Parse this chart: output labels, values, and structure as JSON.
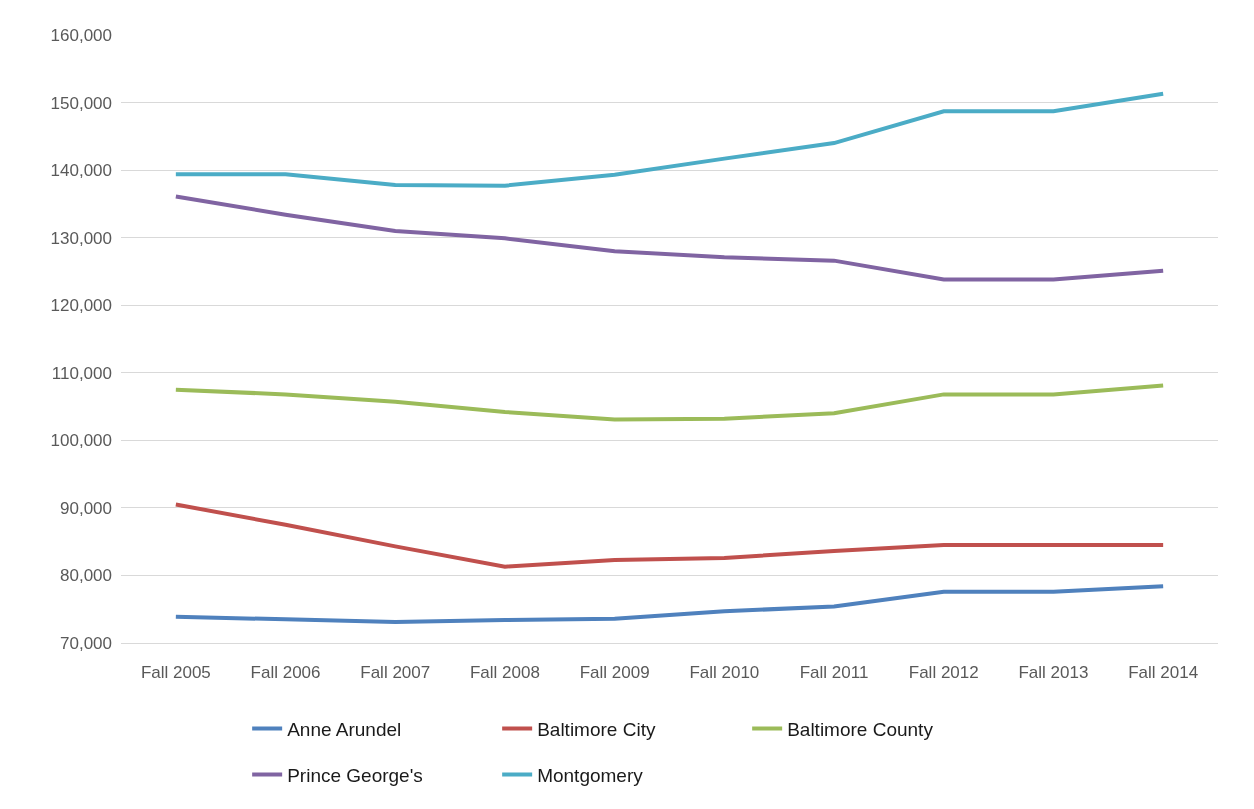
{
  "chart_data": {
    "type": "line",
    "categories": [
      "Fall 2005",
      "Fall 2006",
      "Fall 2007",
      "Fall 2008",
      "Fall 2009",
      "Fall 2010",
      "Fall 2011",
      "Fall 2012",
      "Fall 2013",
      "Fall 2014"
    ],
    "series": [
      {
        "name": "Anne Arundel",
        "color": "#4f81bd",
        "values": [
          73900,
          73500,
          73100,
          73400,
          73600,
          74700,
          75400,
          77600,
          77600,
          78400
        ]
      },
      {
        "name": "Baltimore City",
        "color": "#c0504d",
        "values": [
          90500,
          87500,
          84300,
          81300,
          82300,
          82600,
          83600,
          84500,
          84500,
          84500
        ]
      },
      {
        "name": "Baltimore County",
        "color": "#9bbb59",
        "values": [
          107500,
          106800,
          105700,
          104200,
          103100,
          103200,
          104000,
          106800,
          106800,
          108100
        ]
      },
      {
        "name": "Prince George's",
        "color": "#8064a2",
        "values": [
          136100,
          133400,
          131000,
          129900,
          128000,
          127100,
          126600,
          123800,
          123800,
          125100
        ]
      },
      {
        "name": "Montgomery",
        "color": "#4bacc6",
        "values": [
          139400,
          139400,
          137800,
          137700,
          139300,
          141700,
          144000,
          148700,
          148700,
          151300
        ]
      }
    ],
    "ylim": [
      70000,
      160000
    ],
    "yticks": [
      {
        "value": 70000,
        "label": "70,000"
      },
      {
        "value": 80000,
        "label": "80,000"
      },
      {
        "value": 90000,
        "label": "90,000"
      },
      {
        "value": 100000,
        "label": "100,000"
      },
      {
        "value": 110000,
        "label": "110,000"
      },
      {
        "value": 120000,
        "label": "120,000"
      },
      {
        "value": 130000,
        "label": "130,000"
      },
      {
        "value": 140000,
        "label": "140,000"
      },
      {
        "value": 150000,
        "label": "150,000"
      },
      {
        "value": 160000,
        "label": "160,000"
      }
    ],
    "grid": "y",
    "legend": "bottom",
    "line_style": "solid"
  }
}
